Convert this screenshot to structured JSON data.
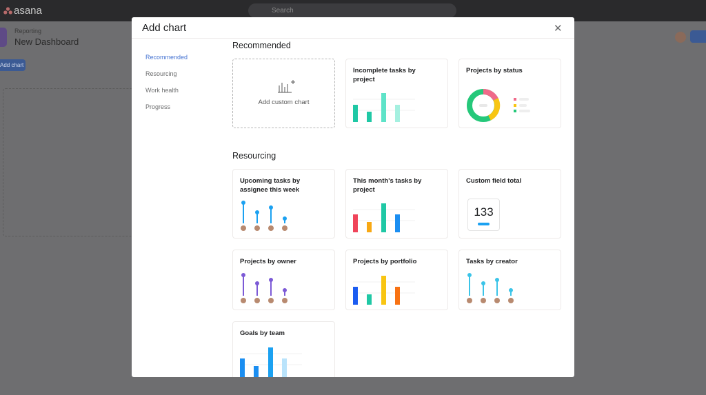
{
  "topbar": {
    "logo": "asana",
    "search": "Search"
  },
  "background": {
    "breadcrumb": "Reporting",
    "title": "New Dashboard",
    "button": "Add chart"
  },
  "modal": {
    "title": "Add chart",
    "nav": [
      "Recommended",
      "Resourcing",
      "Work health",
      "Progress"
    ],
    "sections": [
      {
        "heading": "Recommended",
        "cards": [
          "Add custom chart",
          "Incomplete tasks by project",
          "Projects by status"
        ]
      },
      {
        "heading": "Resourcing",
        "cards": [
          "Upcoming tasks by assignee this week",
          "This month's tasks by project",
          "Custom field total",
          "Projects by owner",
          "Projects by portfolio",
          "Tasks by creator",
          "Goals by team"
        ]
      }
    ],
    "custom_field_value": "133"
  }
}
